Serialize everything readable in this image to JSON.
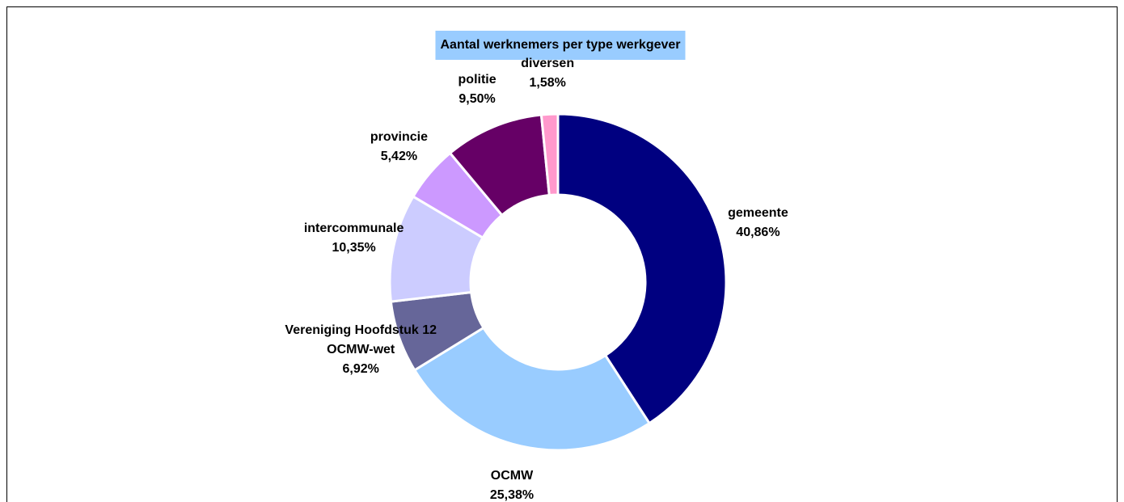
{
  "chart_data": {
    "type": "donut",
    "title": "Aantal werknemers per type werkgever",
    "categories": [
      "gemeente",
      "OCMW",
      "Vereniging Hoofdstuk 12 OCMW-wet",
      "intercommunale",
      "provincie",
      "politie",
      "diversen"
    ],
    "values": [
      40.86,
      25.38,
      6.92,
      10.35,
      5.42,
      9.5,
      1.58
    ],
    "value_labels": [
      "40,86%",
      "25,38%",
      "6,92%",
      "10,35%",
      "5,42%",
      "9,50%",
      "1,58%"
    ],
    "colors": [
      "#000080",
      "#99ccff",
      "#666699",
      "#ccccff",
      "#cc99ff",
      "#660066",
      "#ff99cc"
    ]
  }
}
